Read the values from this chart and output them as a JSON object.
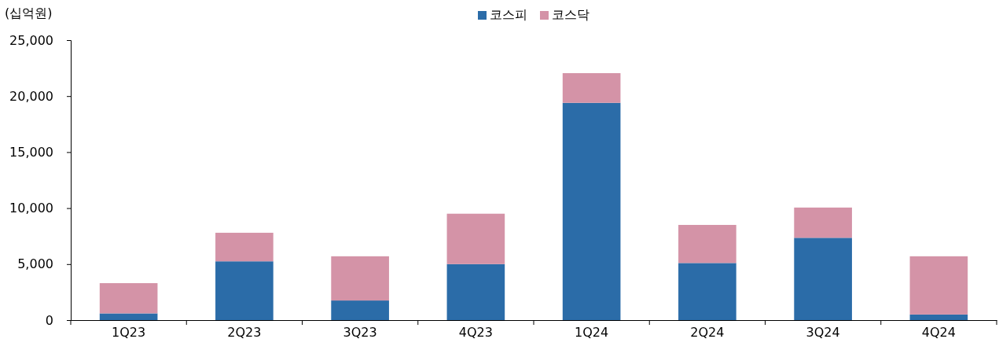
{
  "chart_data": {
    "type": "bar",
    "stacked": true,
    "ylabel": "(십억원)",
    "categories": [
      "1Q23",
      "2Q23",
      "3Q23",
      "4Q23",
      "1Q24",
      "2Q24",
      "3Q24",
      "4Q24"
    ],
    "series": [
      {
        "name": "코스피",
        "color": "#2b6ca8",
        "values": [
          600,
          5250,
          1750,
          5000,
          19400,
          5100,
          7350,
          500
        ]
      },
      {
        "name": "코스닥",
        "color": "#d493a7",
        "values": [
          2700,
          2550,
          3950,
          4500,
          2650,
          3400,
          2700,
          5200
        ]
      }
    ],
    "ylim": [
      0,
      25000
    ],
    "yticks": [
      {
        "value": 0,
        "label": "0"
      },
      {
        "value": 5000,
        "label": "5,000"
      },
      {
        "value": 10000,
        "label": "10,000"
      },
      {
        "value": 15000,
        "label": "15,000"
      },
      {
        "value": 20000,
        "label": "20,000"
      },
      {
        "value": 25000,
        "label": "25,000"
      }
    ],
    "grid": false,
    "legend": "top"
  }
}
